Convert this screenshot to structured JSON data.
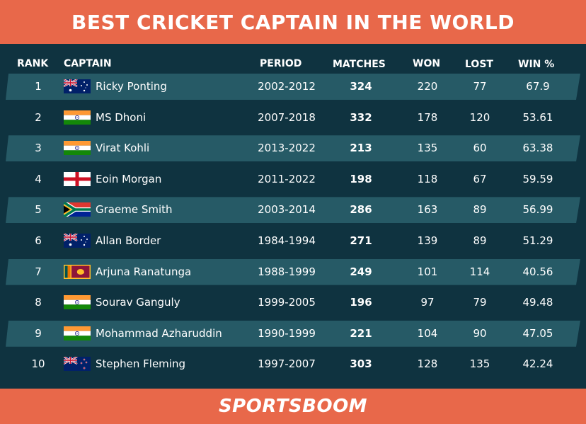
{
  "title": "BEST CRICKET CAPTAIN IN THE WORLD",
  "columns": {
    "rank": "RANK",
    "captain": "CAPTAIN",
    "period": "PERIOD",
    "matches": "MATCHES",
    "won": "WON",
    "lost": "LOST",
    "win_pct": "WIN %"
  },
  "rows": [
    {
      "rank": "1",
      "flag": "australia",
      "captain": "Ricky Ponting",
      "period": "2002-2012",
      "matches": "324",
      "won": "220",
      "lost": "77",
      "win_pct": "67.9"
    },
    {
      "rank": "2",
      "flag": "india",
      "captain": "MS Dhoni",
      "period": "2007-2018",
      "matches": "332",
      "won": "178",
      "lost": "120",
      "win_pct": "53.61"
    },
    {
      "rank": "3",
      "flag": "india",
      "captain": "Virat Kohli",
      "period": "2013-2022",
      "matches": "213",
      "won": "135",
      "lost": "60",
      "win_pct": "63.38"
    },
    {
      "rank": "4",
      "flag": "england",
      "captain": "Eoin Morgan",
      "period": "2011-2022",
      "matches": "198",
      "won": "118",
      "lost": "67",
      "win_pct": "59.59"
    },
    {
      "rank": "5",
      "flag": "south-africa",
      "captain": "Graeme Smith",
      "period": "2003-2014",
      "matches": "286",
      "won": "163",
      "lost": "89",
      "win_pct": "56.99"
    },
    {
      "rank": "6",
      "flag": "australia",
      "captain": "Allan Border",
      "period": "1984-1994",
      "matches": "271",
      "won": "139",
      "lost": "89",
      "win_pct": "51.29"
    },
    {
      "rank": "7",
      "flag": "sri-lanka",
      "captain": "Arjuna Ranatunga",
      "period": "1988-1999",
      "matches": "249",
      "won": "101",
      "lost": "114",
      "win_pct": "40.56"
    },
    {
      "rank": "8",
      "flag": "india",
      "captain": "Sourav Ganguly",
      "period": "1999-2005",
      "matches": "196",
      "won": "97",
      "lost": "79",
      "win_pct": "49.48"
    },
    {
      "rank": "9",
      "flag": "india",
      "captain": "Mohammad Azharuddin",
      "period": "1990-1999",
      "matches": "221",
      "won": "104",
      "lost": "90",
      "win_pct": "47.05"
    },
    {
      "rank": "10",
      "flag": "new-zealand",
      "captain": "Stephen Fleming",
      "period": "1997-2007",
      "matches": "303",
      "won": "128",
      "lost": "135",
      "win_pct": "42.24"
    }
  ],
  "footer": {
    "brand": "SPORTSBOOM"
  },
  "colors": {
    "header_bg": "#e8684a",
    "body_bg": "#0f3340",
    "stripe": "#265a66",
    "text": "#ffffff"
  }
}
